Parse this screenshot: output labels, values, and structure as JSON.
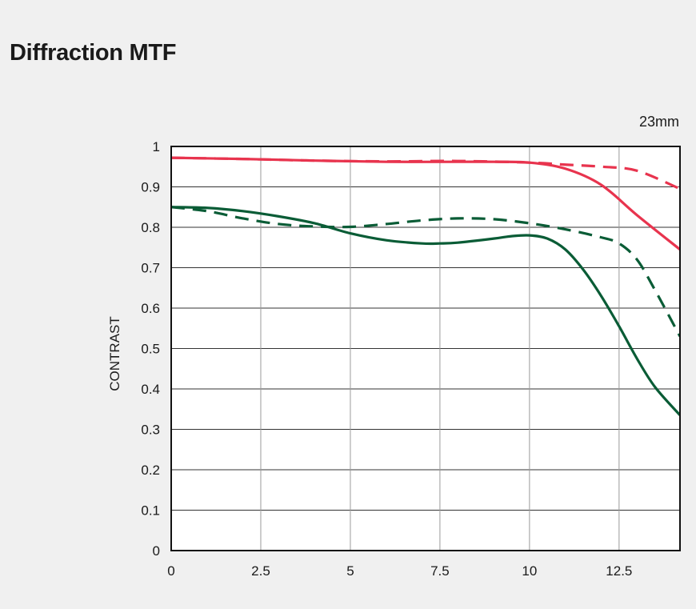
{
  "title": "Diffraction MTF",
  "focal_length": "23mm",
  "chart_data": {
    "type": "line",
    "title": "Diffraction MTF",
    "xlabel": "",
    "ylabel": "CONTRAST",
    "xlim": [
      0,
      14.2
    ],
    "ylim": [
      0,
      1
    ],
    "x_ticks": [
      "0",
      "2.5",
      "5",
      "7.5",
      "10",
      "12.5"
    ],
    "y_ticks": [
      "0",
      "0.1",
      "0.2",
      "0.3",
      "0.4",
      "0.5",
      "0.6",
      "0.7",
      "0.8",
      "0.9",
      "1"
    ],
    "grid": true,
    "series": [
      {
        "color": "#e8344e",
        "style": "solid",
        "x": [
          0,
          2,
          4,
          6,
          8,
          9,
          10,
          11,
          12,
          13,
          14.2
        ],
        "y": [
          0.972,
          0.969,
          0.965,
          0.962,
          0.962,
          0.962,
          0.96,
          0.945,
          0.905,
          0.83,
          0.745
        ]
      },
      {
        "color": "#e8344e",
        "style": "dashed",
        "x": [
          0,
          2,
          4,
          6,
          8,
          10,
          11,
          12,
          13,
          14.2
        ],
        "y": [
          0.972,
          0.969,
          0.965,
          0.963,
          0.964,
          0.96,
          0.955,
          0.95,
          0.94,
          0.895
        ]
      },
      {
        "color": "#0a5c36",
        "style": "solid",
        "x": [
          0,
          1,
          2,
          3,
          4,
          5,
          6,
          7,
          7.5,
          8,
          9,
          9.5,
          10,
          10.5,
          11,
          11.5,
          12,
          12.5,
          13,
          13.5,
          14.2
        ],
        "y": [
          0.85,
          0.848,
          0.84,
          0.827,
          0.81,
          0.785,
          0.768,
          0.76,
          0.76,
          0.762,
          0.772,
          0.778,
          0.78,
          0.772,
          0.745,
          0.695,
          0.63,
          0.555,
          0.475,
          0.405,
          0.335
        ]
      },
      {
        "color": "#0a5c36",
        "style": "dashed",
        "x": [
          0,
          1,
          2,
          3,
          4,
          5,
          6,
          7,
          8,
          9,
          10,
          11,
          12,
          12.5,
          13,
          13.5,
          14.2
        ],
        "y": [
          0.85,
          0.84,
          0.822,
          0.808,
          0.802,
          0.801,
          0.808,
          0.817,
          0.822,
          0.82,
          0.81,
          0.795,
          0.775,
          0.76,
          0.72,
          0.645,
          0.53
        ]
      }
    ]
  }
}
